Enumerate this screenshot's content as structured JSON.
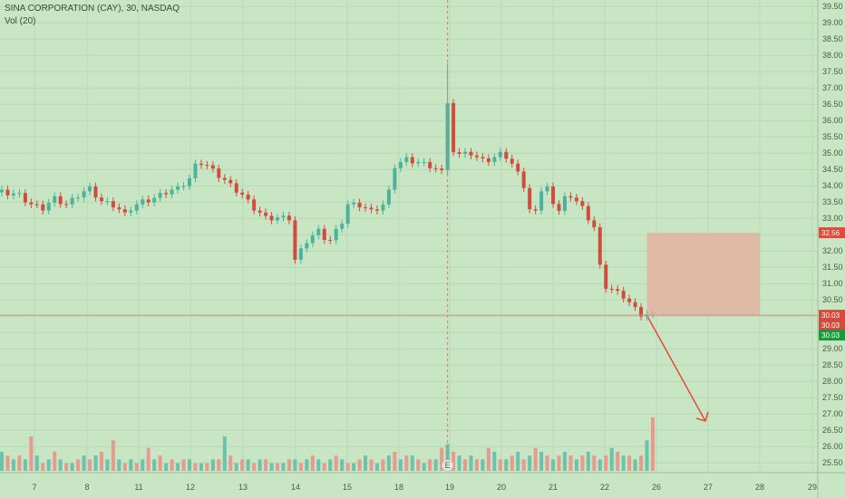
{
  "legend": {
    "symbol": "SINA CORPORATION (CAY), 30, NASDAQ",
    "indicator": "Vol (20)"
  },
  "colors": {
    "background": "#c8e6c4",
    "up": "#4bb39c",
    "down": "#d24c3e",
    "volume_up": "#6cc2ad",
    "volume_down": "#e79a8d",
    "rectangle": "#e2b3a0",
    "arrow": "#e64a3a",
    "price_line": "#d98a80"
  },
  "price_labels": {
    "target": "32.56",
    "last": "30.03",
    "last_bid": "30.03",
    "last_ask": "30.03"
  },
  "event_marker": "E",
  "chart_data": {
    "type": "candlestick",
    "y_axis": {
      "ticks": [
        "25.50",
        "26.00",
        "26.50",
        "27.00",
        "27.50",
        "28.00",
        "28.50",
        "29.00",
        "29.50",
        "30.00",
        "30.50",
        "31.00",
        "31.50",
        "32.00",
        "32.50",
        "33.00",
        "33.50",
        "34.00",
        "34.50",
        "35.00",
        "35.50",
        "36.00",
        "36.50",
        "37.00",
        "37.50",
        "38.00",
        "38.50",
        "39.00",
        "39.50"
      ],
      "range": [
        25.2,
        39.7
      ]
    },
    "x_axis": {
      "ticks": [
        "7",
        "8",
        "11",
        "12",
        "13",
        "14",
        "15",
        "18",
        "19",
        "20",
        "21",
        "22",
        "26",
        "27",
        "28",
        "29"
      ],
      "positions": [
        4,
        13,
        22,
        31,
        40,
        49,
        58,
        67,
        76,
        85,
        94,
        103,
        112,
        121,
        130,
        139
      ]
    },
    "bars_count": 112,
    "price_path": [
      [
        0,
        33.8
      ],
      [
        3,
        33.7
      ],
      [
        5,
        33.4
      ],
      [
        7,
        33.3
      ],
      [
        9,
        33.6
      ],
      [
        11,
        33.4
      ],
      [
        13,
        33.7
      ],
      [
        15,
        33.9
      ],
      [
        17,
        33.5
      ],
      [
        19,
        33.4
      ],
      [
        21,
        33.1
      ],
      [
        22,
        33.3
      ],
      [
        24,
        33.5
      ],
      [
        26,
        33.6
      ],
      [
        28,
        33.8
      ],
      [
        30,
        33.9
      ],
      [
        32,
        34.2
      ],
      [
        33,
        34.6
      ],
      [
        34,
        34.7
      ],
      [
        35,
        34.6
      ],
      [
        37,
        34.3
      ],
      [
        39,
        34.0
      ],
      [
        41,
        33.7
      ],
      [
        43,
        33.3
      ],
      [
        45,
        33.0
      ],
      [
        47,
        33.0
      ],
      [
        49,
        33.0
      ],
      [
        50,
        31.7
      ],
      [
        52,
        32.3
      ],
      [
        54,
        32.6
      ],
      [
        55,
        32.4
      ],
      [
        56,
        32.3
      ],
      [
        57,
        32.6
      ],
      [
        58,
        32.9
      ],
      [
        59,
        33.4
      ],
      [
        61,
        33.4
      ],
      [
        63,
        33.2
      ],
      [
        65,
        33.4
      ],
      [
        66,
        33.8
      ],
      [
        67,
        34.6
      ],
      [
        69,
        34.8
      ],
      [
        71,
        34.7
      ],
      [
        73,
        34.6
      ],
      [
        74,
        34.5
      ],
      [
        75,
        34.4
      ],
      [
        76,
        36.6
      ],
      [
        77,
        35.0
      ],
      [
        78,
        34.9
      ],
      [
        79,
        35.1
      ],
      [
        80,
        34.9
      ],
      [
        81,
        34.8
      ],
      [
        82,
        34.9
      ],
      [
        83,
        34.7
      ],
      [
        84,
        34.8
      ],
      [
        85,
        35.1
      ],
      [
        86,
        34.8
      ],
      [
        87,
        34.6
      ],
      [
        88,
        34.5
      ],
      [
        89,
        33.9
      ],
      [
        90,
        33.2
      ],
      [
        91,
        33.3
      ],
      [
        92,
        33.8
      ],
      [
        93,
        33.9
      ],
      [
        94,
        33.5
      ],
      [
        95,
        33.2
      ],
      [
        96,
        33.6
      ],
      [
        97,
        33.7
      ],
      [
        98,
        33.5
      ],
      [
        99,
        33.3
      ],
      [
        100,
        33.0
      ],
      [
        101,
        32.7
      ],
      [
        102,
        31.5
      ],
      [
        103,
        30.9
      ],
      [
        104,
        30.8
      ],
      [
        105,
        30.7
      ],
      [
        106,
        30.6
      ],
      [
        107,
        30.4
      ],
      [
        108,
        30.2
      ],
      [
        109,
        30.05
      ],
      [
        110,
        30.03
      ]
    ],
    "volume_scale_max": 32,
    "volume": [
      5,
      4,
      3,
      4,
      3,
      9,
      4,
      2,
      3,
      5,
      3,
      2,
      2,
      3,
      4,
      3,
      4,
      5,
      3,
      8,
      3,
      2,
      3,
      2,
      3,
      6,
      3,
      4,
      2,
      3,
      2,
      3,
      3,
      2,
      2,
      2,
      3,
      3,
      9,
      4,
      2,
      3,
      3,
      2,
      3,
      3,
      2,
      2,
      2,
      3,
      3,
      2,
      3,
      4,
      3,
      2,
      3,
      4,
      3,
      2,
      2,
      3,
      4,
      3,
      2,
      3,
      4,
      5,
      3,
      4,
      4,
      3,
      2,
      3,
      3,
      6,
      7,
      5,
      4,
      3,
      4,
      3,
      3,
      6,
      5,
      3,
      3,
      4,
      5,
      3,
      4,
      6,
      5,
      4,
      3,
      4,
      5,
      4,
      3,
      4,
      5,
      4,
      3,
      4,
      6,
      5,
      4,
      4,
      3,
      4,
      8,
      14
    ],
    "events": [
      {
        "bar": 76,
        "label": "E"
      }
    ],
    "target_zone": {
      "from_bar": 110,
      "to_bar": 130,
      "top": 32.56,
      "bottom": 30.03
    }
  }
}
